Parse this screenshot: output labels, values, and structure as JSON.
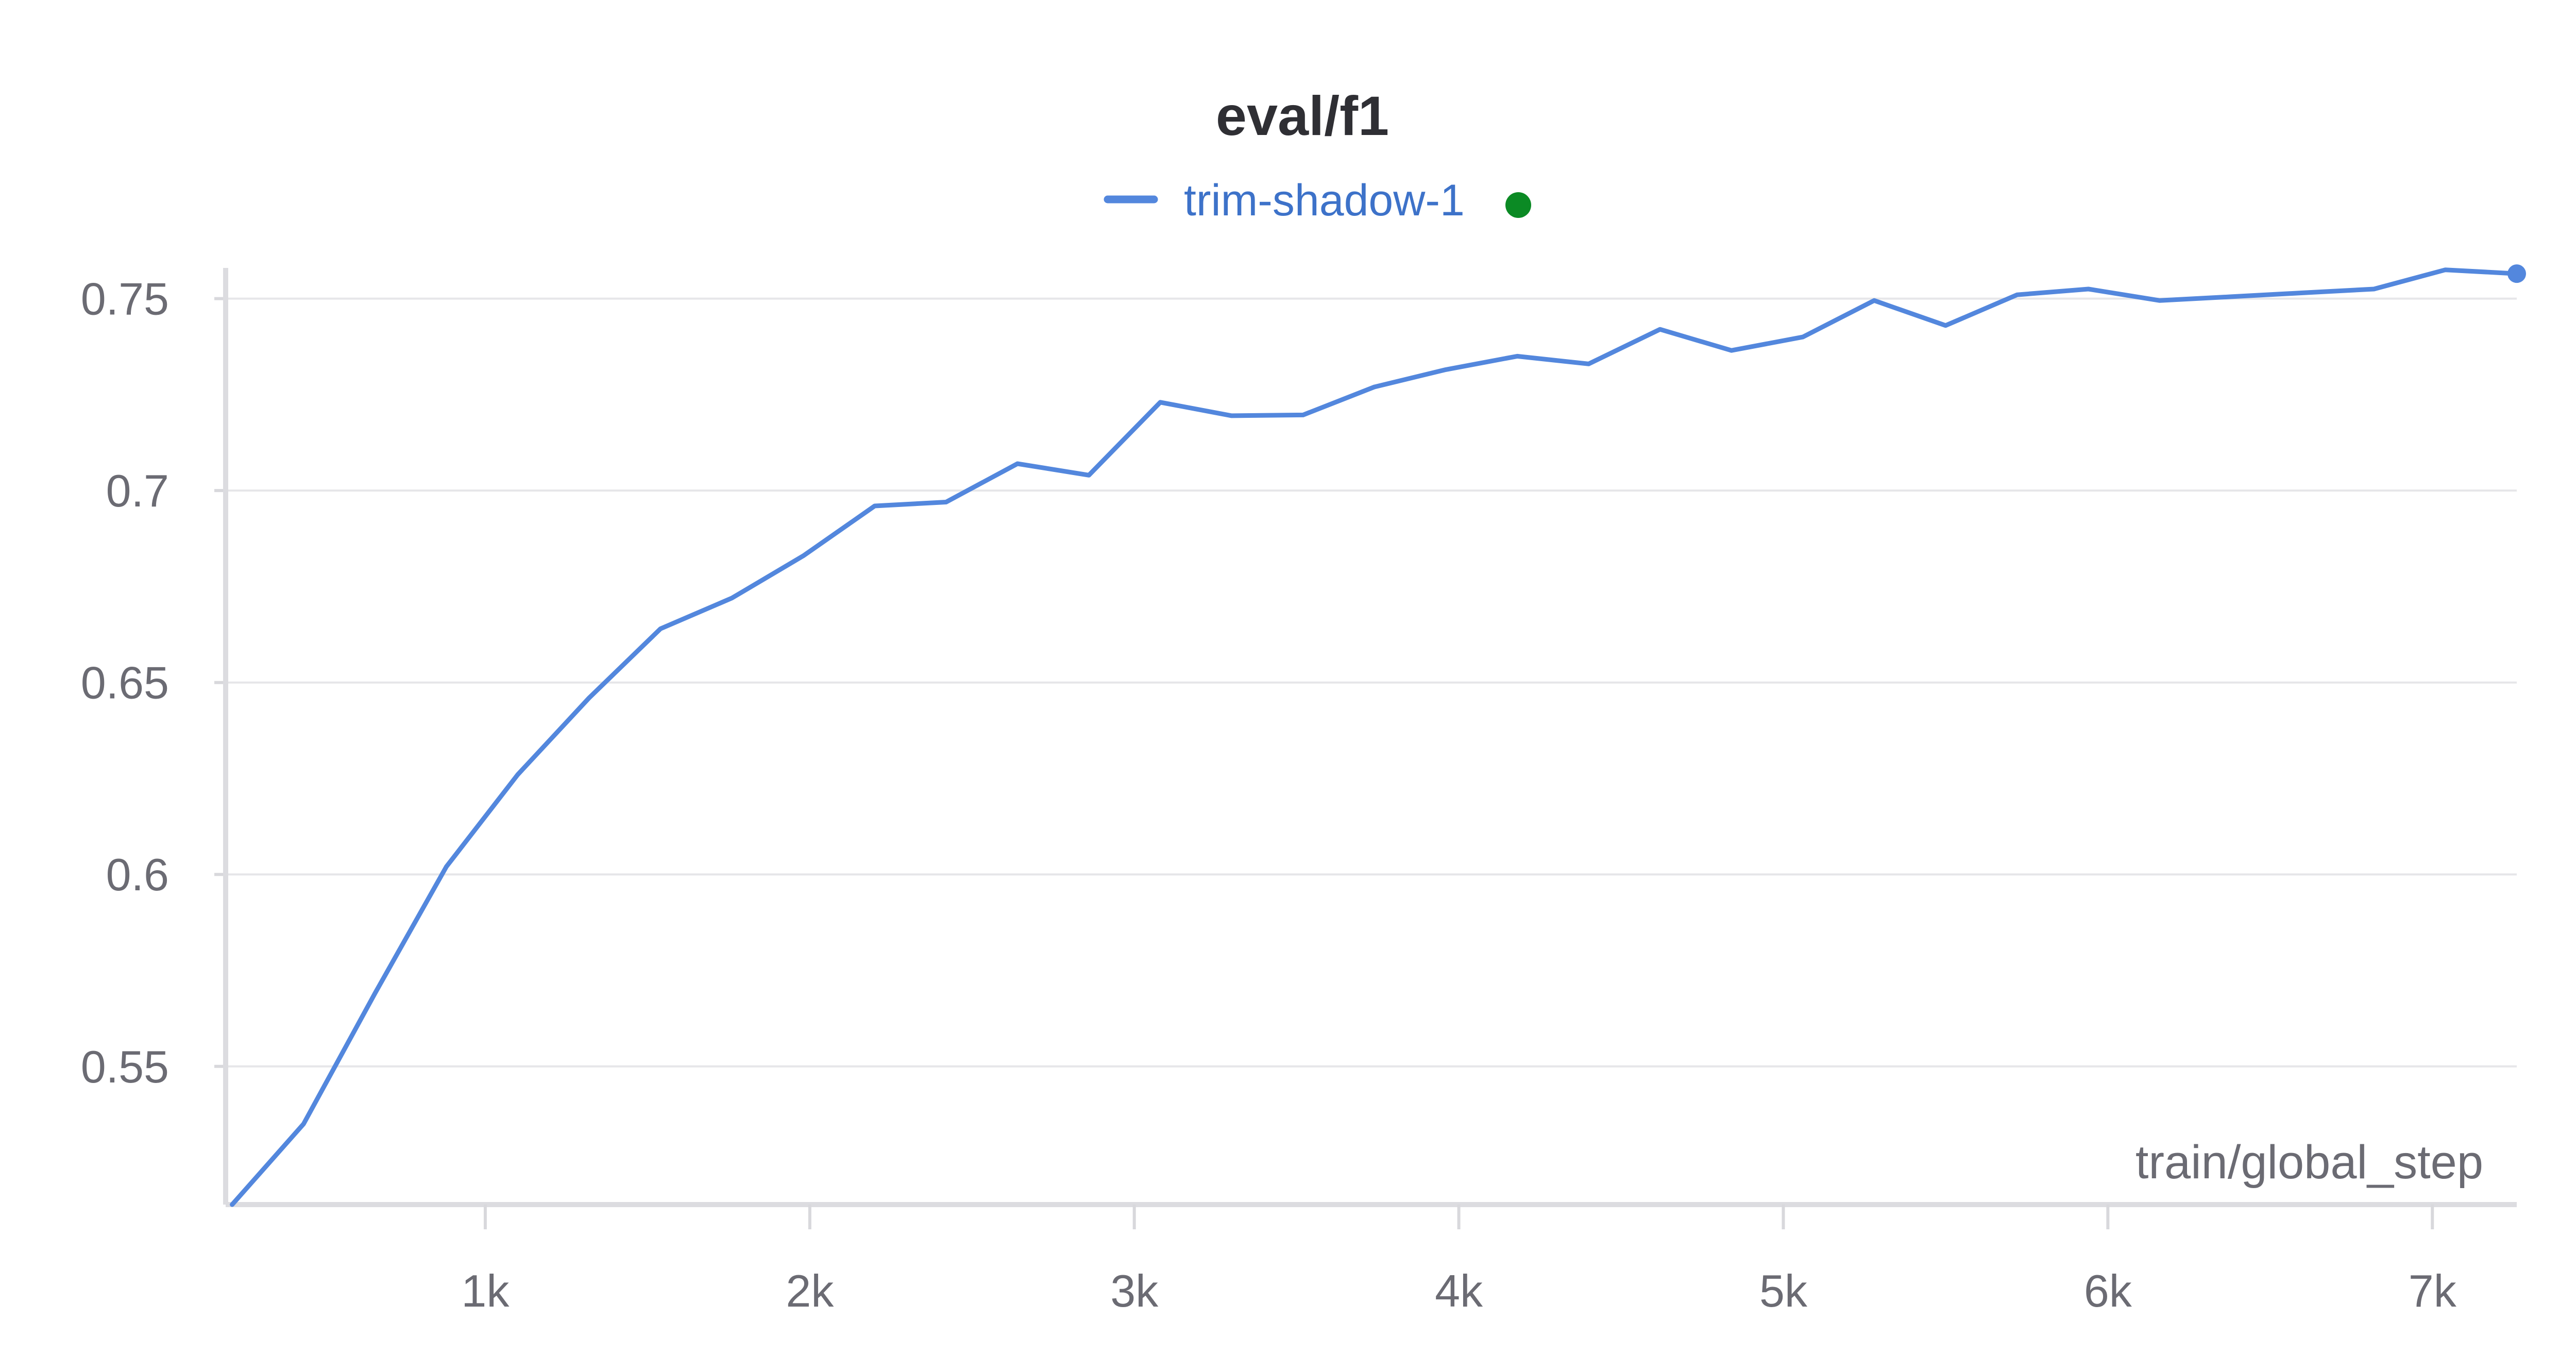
{
  "chart_data": {
    "type": "line",
    "title": "eval/f1",
    "xlabel": "train/global_step",
    "ylabel": "",
    "xlim": [
      200,
      7260
    ],
    "ylim": [
      0.514,
      0.758
    ],
    "x_ticks": [
      1000,
      2000,
      3000,
      4000,
      5000,
      6000,
      7000
    ],
    "x_tick_labels": [
      "1k",
      "2k",
      "3k",
      "4k",
      "5k",
      "6k",
      "7k"
    ],
    "y_ticks": [
      0.55,
      0.6,
      0.65,
      0.7,
      0.75
    ],
    "y_tick_labels": [
      "0.55",
      "0.6",
      "0.65",
      "0.7",
      "0.75"
    ],
    "grid": true,
    "legend_position": "top-center",
    "series": [
      {
        "name": "trim-shadow-1",
        "color": "#5387dd",
        "status_color": "#0b8a24",
        "x": [
          220,
          440,
          660,
          880,
          1100,
          1320,
          1540,
          1760,
          1980,
          2200,
          2420,
          2640,
          2860,
          3080,
          3300,
          3520,
          3740,
          3960,
          4180,
          4400,
          4620,
          4840,
          5060,
          5280,
          5500,
          5720,
          5940,
          6160,
          6380,
          6600,
          6820,
          7040,
          7260
        ],
        "y": [
          0.514,
          0.535,
          0.569,
          0.602,
          0.626,
          0.646,
          0.664,
          0.672,
          0.683,
          0.696,
          0.697,
          0.707,
          0.704,
          0.723,
          0.7195,
          0.7197,
          0.727,
          0.7315,
          0.735,
          0.733,
          0.742,
          0.7365,
          0.74,
          0.7495,
          0.743,
          0.751,
          0.7525,
          0.7495,
          0.7505,
          0.7515,
          0.7525,
          0.7575,
          0.7565
        ]
      }
    ]
  }
}
